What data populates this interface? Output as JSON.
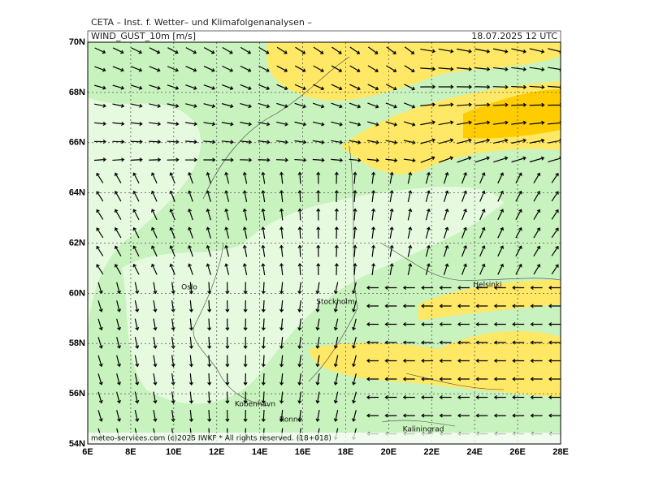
{
  "header": {
    "title": "CETA – Inst. f. Wetter– und Klimafolgenanalysen –",
    "field": "WIND_GUST_10m [m/s]",
    "valid": "18.07.2025 12 UTC"
  },
  "axes": {
    "lat_labels": [
      "70N",
      "68N",
      "66N",
      "64N",
      "62N",
      "60N",
      "58N",
      "56N",
      "54N"
    ],
    "lon_labels": [
      "6E",
      "8E",
      "10E",
      "12E",
      "14E",
      "16E",
      "18E",
      "20E",
      "22E",
      "24E",
      "26E",
      "28E"
    ]
  },
  "cities": [
    "Oslo",
    "Stockholm",
    "Helsinki",
    "Kobenhavn",
    "Ronne",
    "Kaliningrad"
  ],
  "footer": "meteo-services.com (c)2025 IWKF * All rights reserved. (18+018)"
}
